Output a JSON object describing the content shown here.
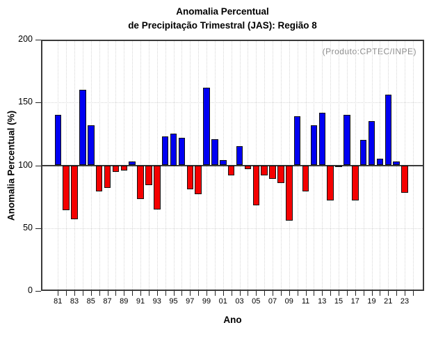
{
  "page": {
    "background": "#ffffff"
  },
  "chart_data": {
    "type": "bar",
    "title_line1": "Anomalia Percentual",
    "title_line2": "de Precipitação Trimestral (JAS): Região 8",
    "annotation": "(Produto:CPTEC/INPE)",
    "xlabel": "Ano",
    "ylabel": "Anomalia Percentual (%)",
    "ylim": [
      0,
      200
    ],
    "yticks": [
      0,
      50,
      100,
      150,
      200
    ],
    "baseline": 100,
    "grid": "dotted",
    "legend_position": "none",
    "categories": [
      "81",
      "82",
      "83",
      "84",
      "85",
      "86",
      "87",
      "88",
      "89",
      "90",
      "91",
      "92",
      "93",
      "94",
      "95",
      "96",
      "97",
      "98",
      "99",
      "00",
      "01",
      "02",
      "03",
      "04",
      "05",
      "06",
      "07",
      "08",
      "09",
      "10",
      "11",
      "12",
      "13",
      "14",
      "15",
      "16",
      "17",
      "18",
      "19",
      "20",
      "21",
      "22",
      "23"
    ],
    "values": [
      140,
      64,
      57,
      160,
      132,
      79,
      82,
      95,
      96,
      103,
      73,
      84,
      65,
      123,
      125,
      122,
      81,
      77,
      162,
      121,
      104,
      92,
      115,
      97,
      68,
      92,
      89,
      86,
      56,
      139,
      79,
      132,
      142,
      72,
      99,
      140,
      72,
      120,
      135,
      105,
      156,
      103,
      78
    ],
    "x_ticks": [
      "81",
      "82",
      "83",
      "84",
      "85",
      "86",
      "87",
      "88",
      "89",
      "90",
      "91",
      "92",
      "93",
      "94",
      "95",
      "96",
      "97",
      "98",
      "99",
      "00",
      "01",
      "02",
      "03",
      "04",
      "05",
      "06",
      "07",
      "08",
      "09",
      "10",
      "11",
      "12",
      "13",
      "14",
      "15",
      "16",
      "17",
      "18",
      "19",
      "20",
      "21",
      "22",
      "23",
      "24"
    ],
    "labeled_x_ticks": [
      "81",
      "83",
      "85",
      "87",
      "89",
      "91",
      "93",
      "95",
      "97",
      "99",
      "01",
      "03",
      "05",
      "07",
      "09",
      "11",
      "13",
      "15",
      "17",
      "19",
      "21",
      "23"
    ],
    "colors": {
      "above_baseline": "#0000f2",
      "below_baseline": "#f40000",
      "bar_border": "#111111",
      "axis": "#3a3a3a",
      "grid": "#d6d6d6",
      "annotation_text": "#8c8c8c",
      "text": "#000000"
    }
  }
}
